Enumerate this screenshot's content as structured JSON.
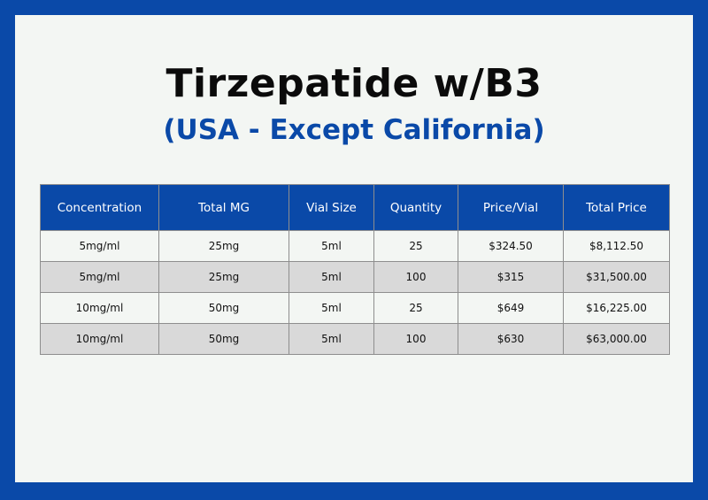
{
  "header": {
    "title": "Tirzepatide w/B3",
    "subtitle": "(USA - Except California)"
  },
  "table": {
    "columns": [
      "Concentration",
      "Total MG",
      "Vial Size",
      "Quantity",
      "Price/Vial",
      "Total Price"
    ],
    "rows": [
      [
        "5mg/ml",
        "25mg",
        "5ml",
        "25",
        "$324.50",
        "$8,112.50"
      ],
      [
        "5mg/ml",
        "25mg",
        "5ml",
        "100",
        "$315",
        "$31,500.00"
      ],
      [
        "10mg/ml",
        "50mg",
        "5ml",
        "25",
        "$649",
        "$16,225.00"
      ],
      [
        "10mg/ml",
        "50mg",
        "5ml",
        "100",
        "$630",
        "$63,000.00"
      ]
    ]
  },
  "colors": {
    "brand_blue": "#0a49a8",
    "panel_background": "#f3f6f3",
    "alt_row_background": "#d9d9d9"
  }
}
